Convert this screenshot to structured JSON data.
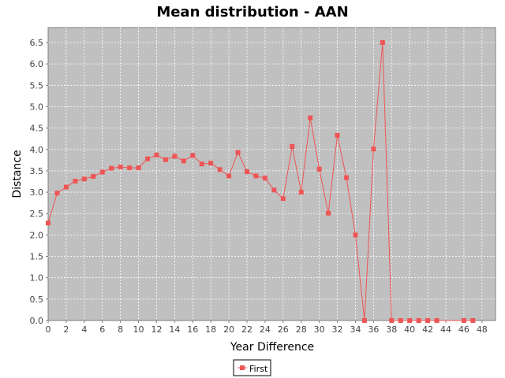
{
  "chart_data": {
    "type": "line",
    "title": "Mean distribution - AAN",
    "xlabel": "Year Difference",
    "ylabel": "Distance",
    "xlim": [
      0,
      49.5
    ],
    "ylim": [
      0,
      6.85
    ],
    "xticks": [
      0,
      2,
      4,
      6,
      8,
      10,
      12,
      14,
      16,
      18,
      20,
      22,
      24,
      26,
      28,
      30,
      32,
      34,
      36,
      38,
      40,
      42,
      44,
      46,
      48
    ],
    "yticks": [
      0.0,
      0.5,
      1.0,
      1.5,
      2.0,
      2.5,
      3.0,
      3.5,
      4.0,
      4.5,
      5.0,
      5.5,
      6.0,
      6.5
    ],
    "grid": true,
    "legend_position": "bottom",
    "series": [
      {
        "name": "First",
        "color": "#ee5555",
        "x": [
          0,
          1,
          2,
          3,
          4,
          5,
          6,
          7,
          8,
          9,
          10,
          11,
          12,
          13,
          14,
          15,
          16,
          17,
          18,
          19,
          20,
          21,
          22,
          23,
          24,
          25,
          26,
          27,
          28,
          29,
          30,
          31,
          32,
          33,
          34,
          35,
          36,
          37,
          38,
          39,
          40,
          41,
          42,
          43,
          46,
          47
        ],
        "y": [
          2.28,
          2.98,
          3.12,
          3.26,
          3.31,
          3.37,
          3.47,
          3.56,
          3.59,
          3.57,
          3.57,
          3.78,
          3.87,
          3.76,
          3.84,
          3.73,
          3.86,
          3.66,
          3.68,
          3.53,
          3.38,
          3.93,
          3.48,
          3.38,
          3.33,
          3.05,
          2.85,
          4.07,
          3.0,
          4.74,
          3.54,
          2.51,
          4.33,
          3.34,
          2.0,
          0.0,
          4.01,
          6.5,
          0.0,
          0.0,
          0.0,
          0.0,
          0.0,
          0.0,
          0.0,
          0.0
        ]
      }
    ]
  }
}
